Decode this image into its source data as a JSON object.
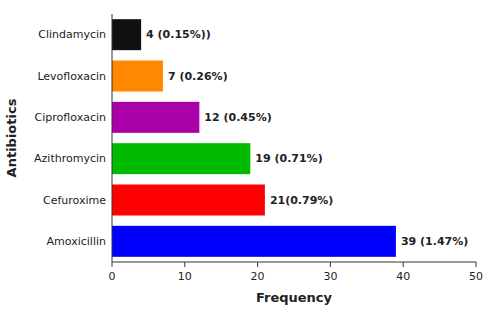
{
  "chart_data": {
    "type": "bar",
    "orientation": "horizontal",
    "categories": [
      "Amoxicillin",
      "Cefuroxime",
      "Azithromycin",
      "Ciprofloxacin",
      "Levofloxacin",
      "Clindamycin"
    ],
    "values": [
      39,
      21,
      19,
      12,
      7,
      4
    ],
    "value_labels": [
      "39 (1.47%)",
      "21(0.79%)",
      "19 (0.71%)",
      "12 (0.45%)",
      "7 (0.26%)",
      "4 (0.15%))"
    ],
    "data_labels": true,
    "colors": [
      "#0000ff",
      "#ff0000",
      "#00bb00",
      "#aa00aa",
      "#ff8800",
      "#111111"
    ],
    "xlabel": "Frequency",
    "ylabel": "Antibiotics",
    "xlim": [
      0,
      50
    ],
    "xticks": [
      0,
      10,
      20,
      30,
      40,
      50
    ],
    "grid": false
  }
}
